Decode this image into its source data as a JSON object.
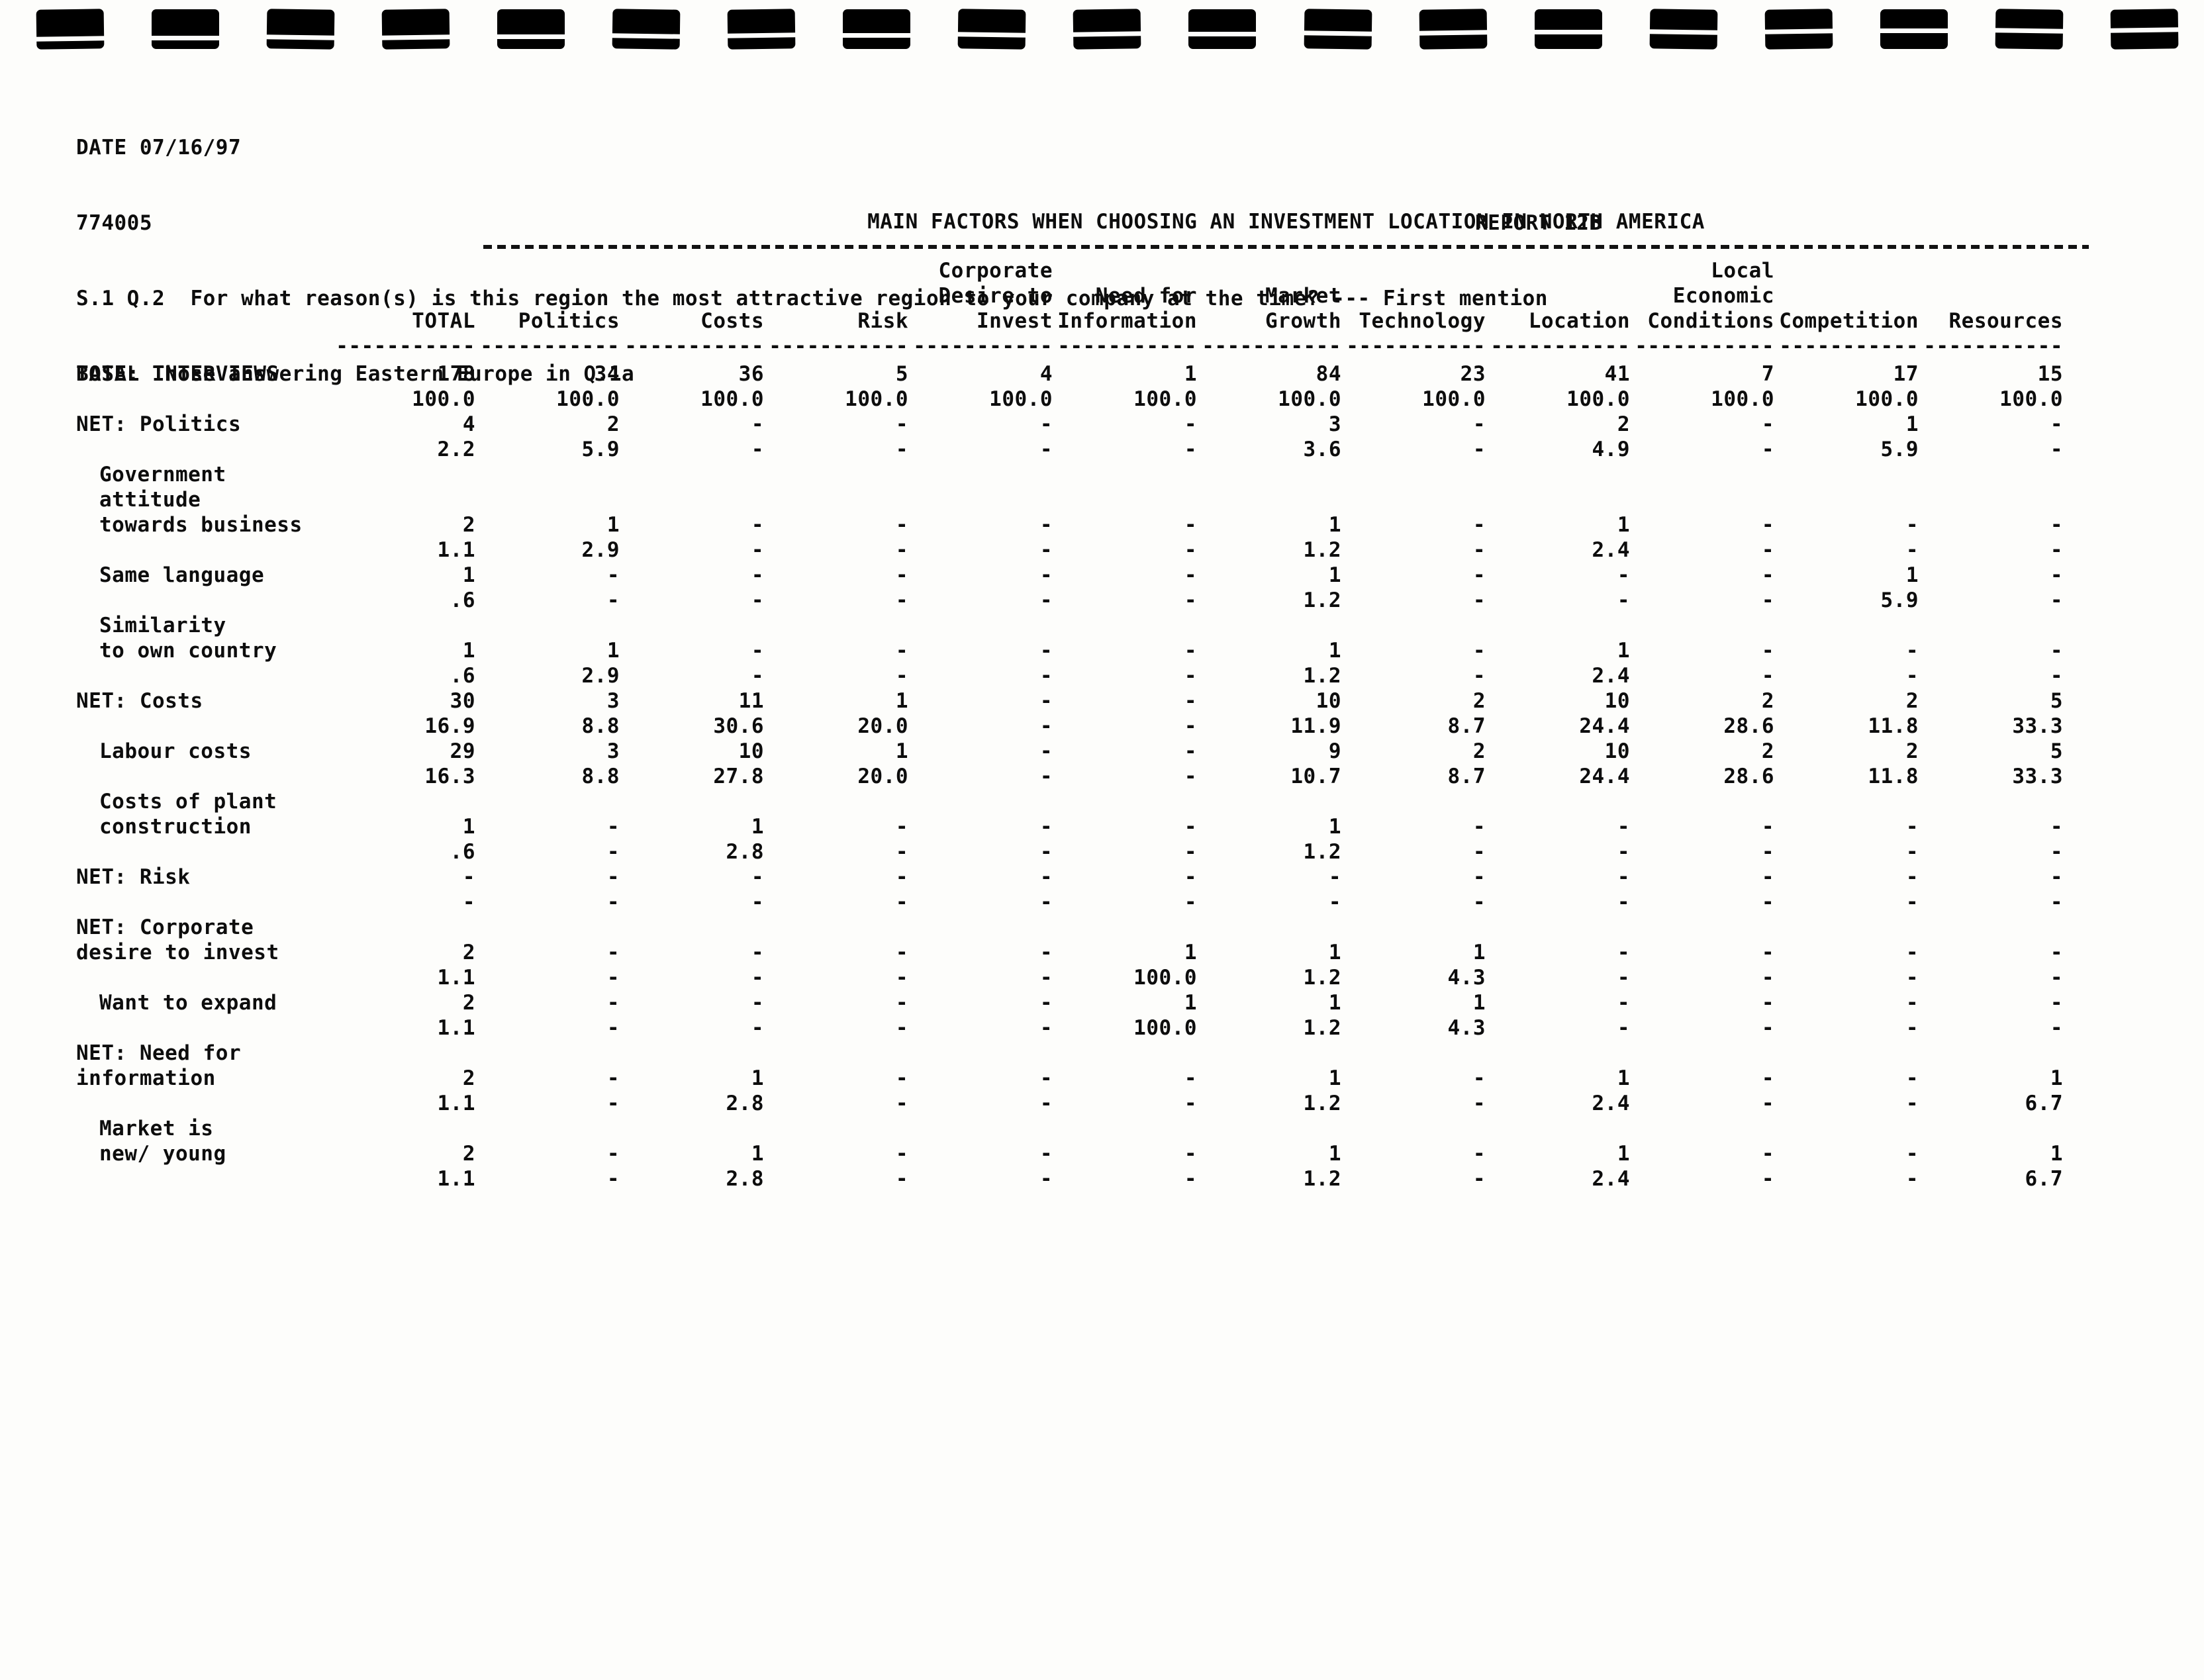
{
  "page": {
    "date_label": "DATE 07/16/97",
    "job_number": "774005",
    "report_label": "REPORT 12B",
    "question": "S.1 Q.2  For what reason(s) is this region the most attractive region to your company at the time? --- First mention",
    "base": "BASE: Those answering Eastern Europe in Q.1a"
  },
  "decor": {
    "binding_marks": 19
  },
  "table": {
    "title": "MAIN FACTORS WHEN CHOOSING AN INVESTMENT LOCATION IN NORTH AMERICA",
    "column_rule": "-----------",
    "columns": [
      {
        "lines": [
          "TOTAL"
        ]
      },
      {
        "lines": [
          "Politics"
        ]
      },
      {
        "lines": [
          "Costs"
        ]
      },
      {
        "lines": [
          "Risk"
        ]
      },
      {
        "lines": [
          "Corporate",
          "Desire to",
          "Invest"
        ]
      },
      {
        "lines": [
          "Need for",
          "Information"
        ]
      },
      {
        "lines": [
          "Market",
          "Growth"
        ]
      },
      {
        "lines": [
          "Technology"
        ]
      },
      {
        "lines": [
          "Location"
        ]
      },
      {
        "lines": [
          "Local",
          "Economic",
          "Conditions"
        ]
      },
      {
        "lines": [
          "Competition"
        ]
      },
      {
        "lines": [
          "Resources"
        ]
      }
    ],
    "rows": [
      {
        "label_lines": [
          "TOTAL INTERVIEWS"
        ],
        "indent": false,
        "counts": [
          "178",
          "34",
          "36",
          "5",
          "4",
          "1",
          "84",
          "23",
          "41",
          "7",
          "17",
          "15"
        ],
        "pcts": [
          "100.0",
          "100.0",
          "100.0",
          "100.0",
          "100.0",
          "100.0",
          "100.0",
          "100.0",
          "100.0",
          "100.0",
          "100.0",
          "100.0"
        ]
      },
      {
        "label_lines": [
          "NET: Politics"
        ],
        "indent": false,
        "counts": [
          "4",
          "2",
          "-",
          "-",
          "-",
          "-",
          "3",
          "-",
          "2",
          "-",
          "1",
          "-"
        ],
        "pcts": [
          "2.2",
          "5.9",
          "-",
          "-",
          "-",
          "-",
          "3.6",
          "-",
          "4.9",
          "-",
          "5.9",
          "-"
        ]
      },
      {
        "label_lines": [
          "Government",
          "attitude",
          "towards business"
        ],
        "indent": true,
        "counts": [
          "2",
          "1",
          "-",
          "-",
          "-",
          "-",
          "1",
          "-",
          "1",
          "-",
          "-",
          "-"
        ],
        "pcts": [
          "1.1",
          "2.9",
          "-",
          "-",
          "-",
          "-",
          "1.2",
          "-",
          "2.4",
          "-",
          "-",
          "-"
        ]
      },
      {
        "label_lines": [
          "Same language"
        ],
        "indent": true,
        "counts": [
          "1",
          "-",
          "-",
          "-",
          "-",
          "-",
          "1",
          "-",
          "-",
          "-",
          "1",
          "-"
        ],
        "pcts": [
          ".6",
          "-",
          "-",
          "-",
          "-",
          "-",
          "1.2",
          "-",
          "-",
          "-",
          "5.9",
          "-"
        ]
      },
      {
        "label_lines": [
          "Similarity",
          "to own country"
        ],
        "indent": true,
        "counts": [
          "1",
          "1",
          "-",
          "-",
          "-",
          "-",
          "1",
          "-",
          "1",
          "-",
          "-",
          "-"
        ],
        "pcts": [
          ".6",
          "2.9",
          "-",
          "-",
          "-",
          "-",
          "1.2",
          "-",
          "2.4",
          "-",
          "-",
          "-"
        ]
      },
      {
        "label_lines": [
          "NET: Costs"
        ],
        "indent": false,
        "counts": [
          "30",
          "3",
          "11",
          "1",
          "-",
          "-",
          "10",
          "2",
          "10",
          "2",
          "2",
          "5"
        ],
        "pcts": [
          "16.9",
          "8.8",
          "30.6",
          "20.0",
          "-",
          "-",
          "11.9",
          "8.7",
          "24.4",
          "28.6",
          "11.8",
          "33.3"
        ]
      },
      {
        "label_lines": [
          "Labour costs"
        ],
        "indent": true,
        "counts": [
          "29",
          "3",
          "10",
          "1",
          "-",
          "-",
          "9",
          "2",
          "10",
          "2",
          "2",
          "5"
        ],
        "pcts": [
          "16.3",
          "8.8",
          "27.8",
          "20.0",
          "-",
          "-",
          "10.7",
          "8.7",
          "24.4",
          "28.6",
          "11.8",
          "33.3"
        ]
      },
      {
        "label_lines": [
          "Costs of plant",
          "construction"
        ],
        "indent": true,
        "counts": [
          "1",
          "-",
          "1",
          "-",
          "-",
          "-",
          "1",
          "-",
          "-",
          "-",
          "-",
          "-"
        ],
        "pcts": [
          ".6",
          "-",
          "2.8",
          "-",
          "-",
          "-",
          "1.2",
          "-",
          "-",
          "-",
          "-",
          "-"
        ]
      },
      {
        "label_lines": [
          "NET: Risk"
        ],
        "indent": false,
        "counts": [
          "-",
          "-",
          "-",
          "-",
          "-",
          "-",
          "-",
          "-",
          "-",
          "-",
          "-",
          "-"
        ],
        "pcts": [
          "-",
          "-",
          "-",
          "-",
          "-",
          "-",
          "-",
          "-",
          "-",
          "-",
          "-",
          "-"
        ]
      },
      {
        "label_lines": [
          "NET: Corporate",
          "desire to invest"
        ],
        "indent": false,
        "counts": [
          "2",
          "-",
          "-",
          "-",
          "-",
          "1",
          "1",
          "1",
          "-",
          "-",
          "-",
          "-"
        ],
        "pcts": [
          "1.1",
          "-",
          "-",
          "-",
          "-",
          "100.0",
          "1.2",
          "4.3",
          "-",
          "-",
          "-",
          "-"
        ]
      },
      {
        "label_lines": [
          "Want to expand"
        ],
        "indent": true,
        "counts": [
          "2",
          "-",
          "-",
          "-",
          "-",
          "1",
          "1",
          "1",
          "-",
          "-",
          "-",
          "-"
        ],
        "pcts": [
          "1.1",
          "-",
          "-",
          "-",
          "-",
          "100.0",
          "1.2",
          "4.3",
          "-",
          "-",
          "-",
          "-"
        ]
      },
      {
        "label_lines": [
          "NET: Need for",
          "information"
        ],
        "indent": false,
        "counts": [
          "2",
          "-",
          "1",
          "-",
          "-",
          "-",
          "1",
          "-",
          "1",
          "-",
          "-",
          "1"
        ],
        "pcts": [
          "1.1",
          "-",
          "2.8",
          "-",
          "-",
          "-",
          "1.2",
          "-",
          "2.4",
          "-",
          "-",
          "6.7"
        ]
      },
      {
        "label_lines": [
          "Market is",
          "new/ young"
        ],
        "indent": true,
        "counts": [
          "2",
          "-",
          "1",
          "-",
          "-",
          "-",
          "1",
          "-",
          "1",
          "-",
          "-",
          "1"
        ],
        "pcts": [
          "1.1",
          "-",
          "2.8",
          "-",
          "-",
          "-",
          "1.2",
          "-",
          "2.4",
          "-",
          "-",
          "6.7"
        ]
      }
    ]
  }
}
